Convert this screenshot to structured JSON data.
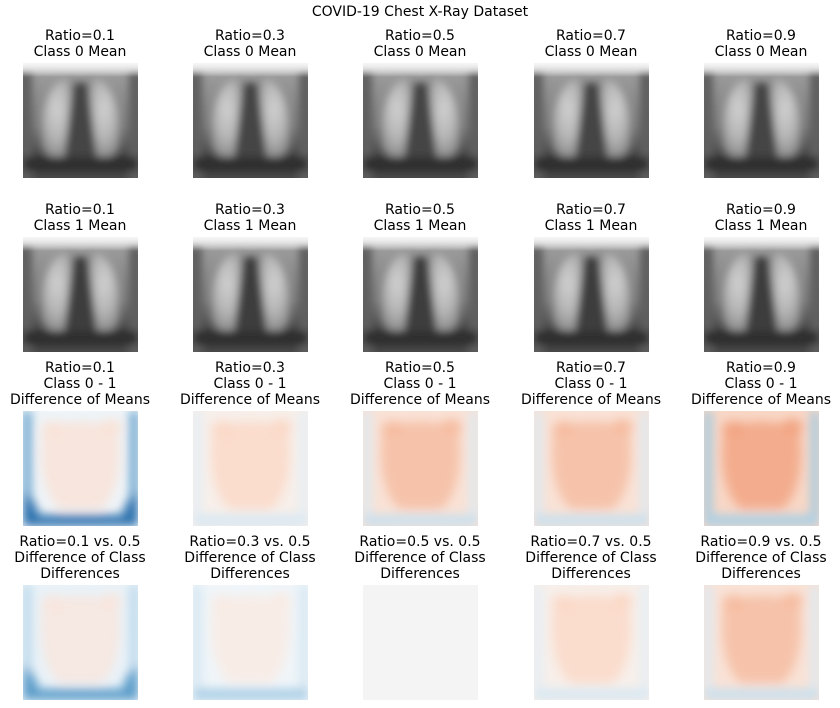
{
  "chart_data": {
    "type": "heatmap",
    "title": "COVID-19 Chest X-Ray Dataset",
    "colormaps": {
      "mean_images": "gray",
      "difference_images": "RdBu"
    },
    "rows": [
      {
        "kind": "mean",
        "panels": [
          {
            "title_lines": [
              "Ratio=0.1",
              "Class 0 Mean"
            ]
          },
          {
            "title_lines": [
              "Ratio=0.3",
              "Class 0 Mean"
            ]
          },
          {
            "title_lines": [
              "Ratio=0.5",
              "Class 0 Mean"
            ]
          },
          {
            "title_lines": [
              "Ratio=0.7",
              "Class 0 Mean"
            ]
          },
          {
            "title_lines": [
              "Ratio=0.9",
              "Class 0 Mean"
            ]
          }
        ]
      },
      {
        "kind": "mean",
        "panels": [
          {
            "title_lines": [
              "Ratio=0.1",
              "Class 1 Mean"
            ]
          },
          {
            "title_lines": [
              "Ratio=0.3",
              "Class 1 Mean"
            ]
          },
          {
            "title_lines": [
              "Ratio=0.5",
              "Class 1 Mean"
            ]
          },
          {
            "title_lines": [
              "Ratio=0.7",
              "Class 1 Mean"
            ]
          },
          {
            "title_lines": [
              "Ratio=0.9",
              "Class 1 Mean"
            ]
          }
        ]
      },
      {
        "kind": "difference",
        "panels": [
          {
            "title_lines": [
              "Ratio=0.1",
              "Class 0 - 1",
              "Difference of Means"
            ],
            "tone": "blue-edges"
          },
          {
            "title_lines": [
              "Ratio=0.3",
              "Class 0 - 1",
              "Difference of Means"
            ],
            "tone": "light-red"
          },
          {
            "title_lines": [
              "Ratio=0.5",
              "Class 0 - 1",
              "Difference of Means"
            ],
            "tone": "red"
          },
          {
            "title_lines": [
              "Ratio=0.7",
              "Class 0 - 1",
              "Difference of Means"
            ],
            "tone": "red"
          },
          {
            "title_lines": [
              "Ratio=0.9",
              "Class 0 - 1",
              "Difference of Means"
            ],
            "tone": "strong-red-blue-border"
          }
        ]
      },
      {
        "kind": "difference",
        "panels": [
          {
            "title_lines": [
              "Ratio=0.1 vs. 0.5",
              "Difference of Class",
              "Differences"
            ],
            "tone": "blue"
          },
          {
            "title_lines": [
              "Ratio=0.3 vs. 0.5",
              "Difference of Class",
              "Differences"
            ],
            "tone": "light-blue"
          },
          {
            "title_lines": [
              "Ratio=0.5 vs. 0.5",
              "Difference of Class",
              "Differences"
            ],
            "tone": "neutral"
          },
          {
            "title_lines": [
              "Ratio=0.7 vs. 0.5",
              "Difference of Class",
              "Differences"
            ],
            "tone": "light-red"
          },
          {
            "title_lines": [
              "Ratio=0.9 vs. 0.5",
              "Difference of Class",
              "Differences"
            ],
            "tone": "red"
          }
        ]
      }
    ]
  }
}
